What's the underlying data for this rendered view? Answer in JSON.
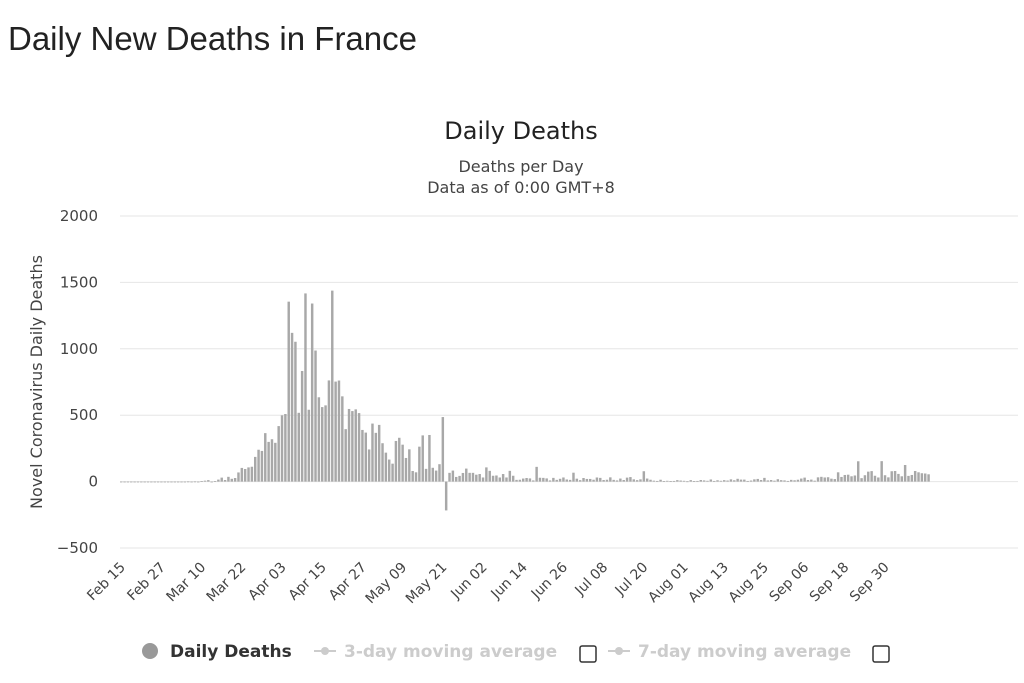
{
  "page": {
    "title": "Daily New Deaths in France"
  },
  "chart_data": {
    "type": "bar",
    "title": "Daily Deaths",
    "subtitle_line1": "Deaths per Day",
    "subtitle_line2": "Data as of 0:00 GMT+8",
    "ylabel": "Novel Coronavirus Daily Deaths",
    "xlabel": "",
    "ylim": [
      -500,
      2000
    ],
    "yticks": [
      2000,
      1500,
      1000,
      500,
      0,
      -500
    ],
    "grid": true,
    "x_tick_labels": [
      "Feb 15",
      "Feb 27",
      "Mar 10",
      "Mar 22",
      "Apr 03",
      "Apr 15",
      "Apr 27",
      "May 09",
      "May 21",
      "Jun 02",
      "Jun 14",
      "Jun 26",
      "Jul 08",
      "Jul 20",
      "Aug 01",
      "Aug 13",
      "Aug 25",
      "Sep 06",
      "Sep 18",
      "Sep 30"
    ],
    "x_start": "Feb 15",
    "bar_color": "#a8a8a8",
    "series": [
      {
        "name": "Daily Deaths",
        "start_date": "Feb 15",
        "values": [
          0,
          0,
          0,
          0,
          0,
          0,
          0,
          0,
          0,
          0,
          0,
          0,
          0,
          0,
          0,
          0,
          0,
          0,
          0,
          0,
          1,
          0,
          1,
          0,
          3,
          7,
          11,
          0,
          3,
          15,
          30,
          12,
          36,
          21,
          27,
          69,
          103,
          95,
          107,
          112,
          186,
          240,
          231,
          365,
          299,
          319,
          292,
          418,
          499,
          509,
          1355,
          1120,
          1053,
          518,
          833,
          1417,
          541,
          1341,
          987,
          635,
          561,
          574,
          762,
          1438,
          753,
          761,
          642,
          395,
          547,
          531,
          544,
          516,
          389,
          369,
          242,
          437,
          367,
          427,
          289,
          218,
          166,
          135,
          306,
          330,
          278,
          178,
          243,
          80,
          70,
          263,
          348,
          96,
          351,
          104,
          83,
          131,
          486,
          -217,
          66,
          83,
          35,
          43,
          65,
          98,
          66,
          66,
          52,
          57,
          31,
          107,
          81,
          44,
          46,
          31,
          57,
          31,
          81,
          44,
          13,
          14,
          23,
          27,
          24,
          9,
          111,
          29,
          28,
          24,
          9,
          28,
          13,
          21,
          31,
          16,
          13,
          67,
          22,
          11,
          27,
          20,
          20,
          14,
          31,
          28,
          12,
          14,
          32,
          13,
          9,
          23,
          12,
          30,
          34,
          17,
          11,
          17,
          78,
          23,
          14,
          7,
          5,
          14,
          3,
          6,
          4,
          5,
          11,
          8,
          6,
          2,
          11,
          4,
          5,
          12,
          9,
          6,
          16,
          5,
          10,
          6,
          11,
          8,
          17,
          10,
          21,
          15,
          15,
          5,
          8,
          17,
          20,
          12,
          28,
          9,
          12,
          7,
          18,
          11,
          9,
          5,
          13,
          10,
          14,
          23,
          30,
          12,
          15,
          7,
          32,
          36,
          31,
          33,
          22,
          19,
          70,
          35,
          50,
          52,
          40,
          46,
          153,
          26,
          48,
          75,
          79,
          44,
          31,
          154,
          48,
          32,
          78,
          80,
          58,
          40,
          125,
          43,
          50,
          80,
          70,
          63,
          61,
          55
        ]
      },
      {
        "name": "3-day moving average"
      },
      {
        "name": "7-day moving average"
      }
    ]
  },
  "legend": {
    "items": [
      {
        "label": "Daily Deaths",
        "color": "#999999",
        "active": true
      },
      {
        "label": "3-day moving average",
        "color": "#cccccc",
        "active": false,
        "checkbox": false
      },
      {
        "label": "7-day moving average",
        "color": "#cccccc",
        "active": false,
        "checkbox": false
      }
    ]
  }
}
